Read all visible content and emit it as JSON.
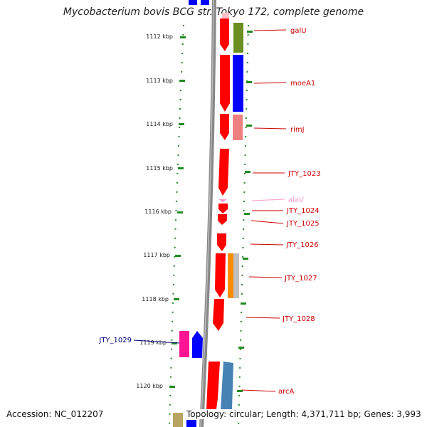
{
  "title": "Mycobacterium bovis BCG str. Tokyo 172, complete genome",
  "footer": {
    "accession": "Accession: NC_012207",
    "summary": "Topology: circular; Length: 4,371,711 bp; Genes: 3,993"
  },
  "ticks": [
    "1112 kbp",
    "1113 kbp",
    "1114 kbp",
    "1115 kbp",
    "1116 kbp",
    "1117 kbp",
    "1118 kbp",
    "1119 kbp",
    "1120 kbp"
  ],
  "genes": [
    {
      "name": "galU",
      "color": "#cc0000"
    },
    {
      "name": "moeA1",
      "color": "#cc0000"
    },
    {
      "name": "rimJ",
      "color": "#cc0000"
    },
    {
      "name": "JTY_1023",
      "color": "#cc0000"
    },
    {
      "name": "alaV",
      "color": "#ff9acb"
    },
    {
      "name": "JTY_1024",
      "color": "#cc0000"
    },
    {
      "name": "JTY_1025",
      "color": "#cc0000"
    },
    {
      "name": "JTY_1026",
      "color": "#cc0000"
    },
    {
      "name": "JTY_1027",
      "color": "#cc0000"
    },
    {
      "name": "JTY_1028",
      "color": "#cc0000"
    },
    {
      "name": "JTY_1029",
      "color": "#000080"
    },
    {
      "name": "arcA",
      "color": "#cc0000"
    }
  ],
  "colors": {
    "backbone": "#888888",
    "dots": "#228b22",
    "forward_gene": "#ff0000",
    "reverse_gene": "#0000ff",
    "label_line": "#cc0000"
  }
}
